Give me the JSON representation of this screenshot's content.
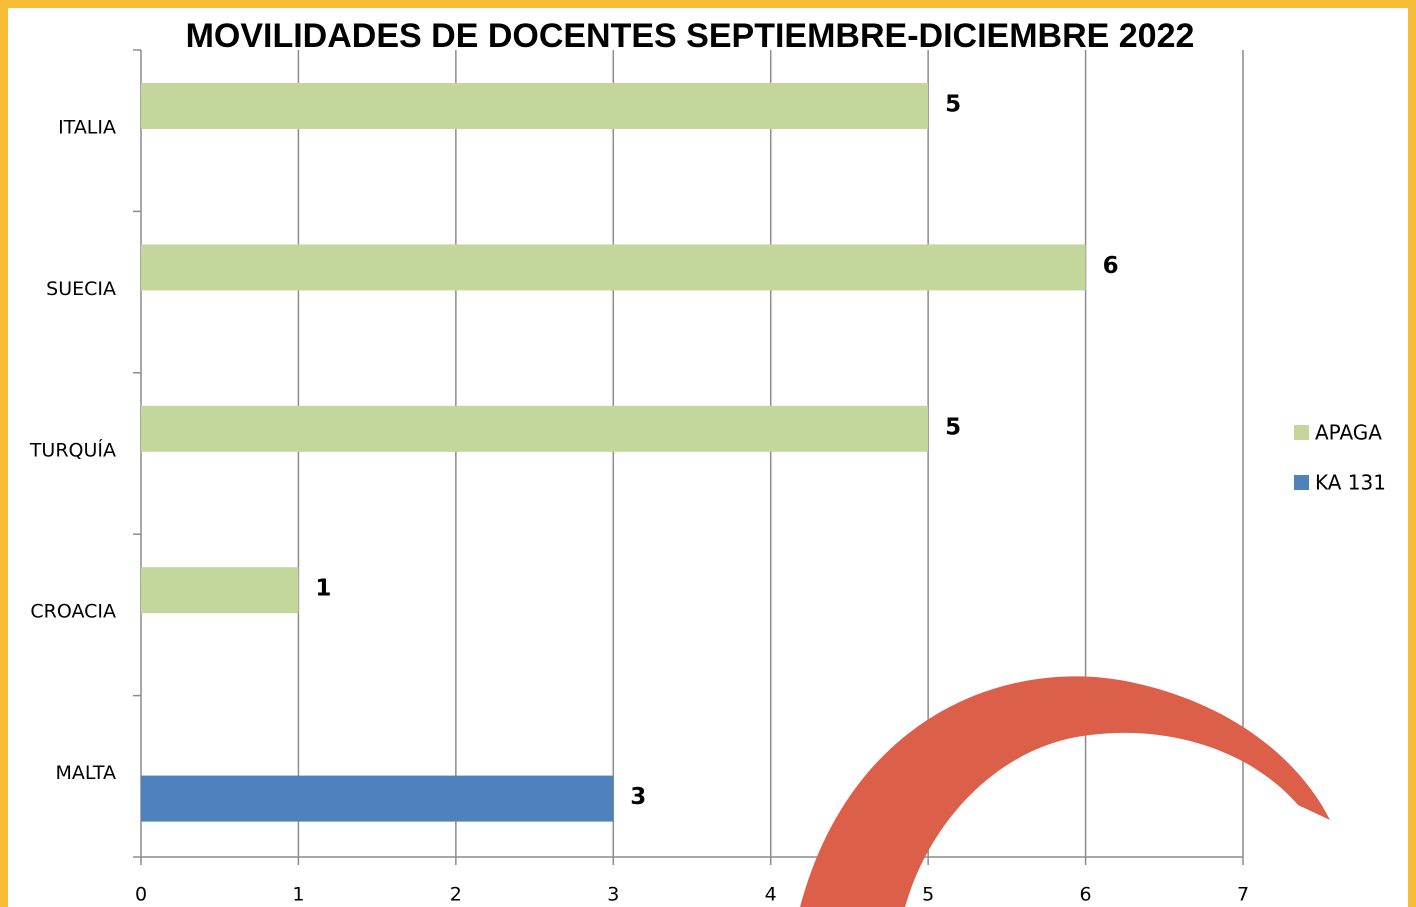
{
  "chart_data": {
    "type": "bar",
    "orientation": "horizontal",
    "title": "MOVILIDADES DE DOCENTES SEPTIEMBRE-DICIEMBRE  2022",
    "categories": [
      "ITALIA",
      "SUECIA",
      "TURQUÍA",
      "CROACIA",
      "MALTA"
    ],
    "series": [
      {
        "name": "APAGA",
        "color": "#c3d69b",
        "values": [
          5,
          6,
          5,
          1,
          null
        ]
      },
      {
        "name": "KA 131",
        "color": "#4f81bd",
        "values": [
          null,
          null,
          null,
          null,
          3
        ]
      }
    ],
    "xlim": [
      0,
      7
    ],
    "xticks": [
      0,
      1,
      2,
      3,
      4,
      5,
      6,
      7
    ],
    "grid": true,
    "legend": "right"
  }
}
